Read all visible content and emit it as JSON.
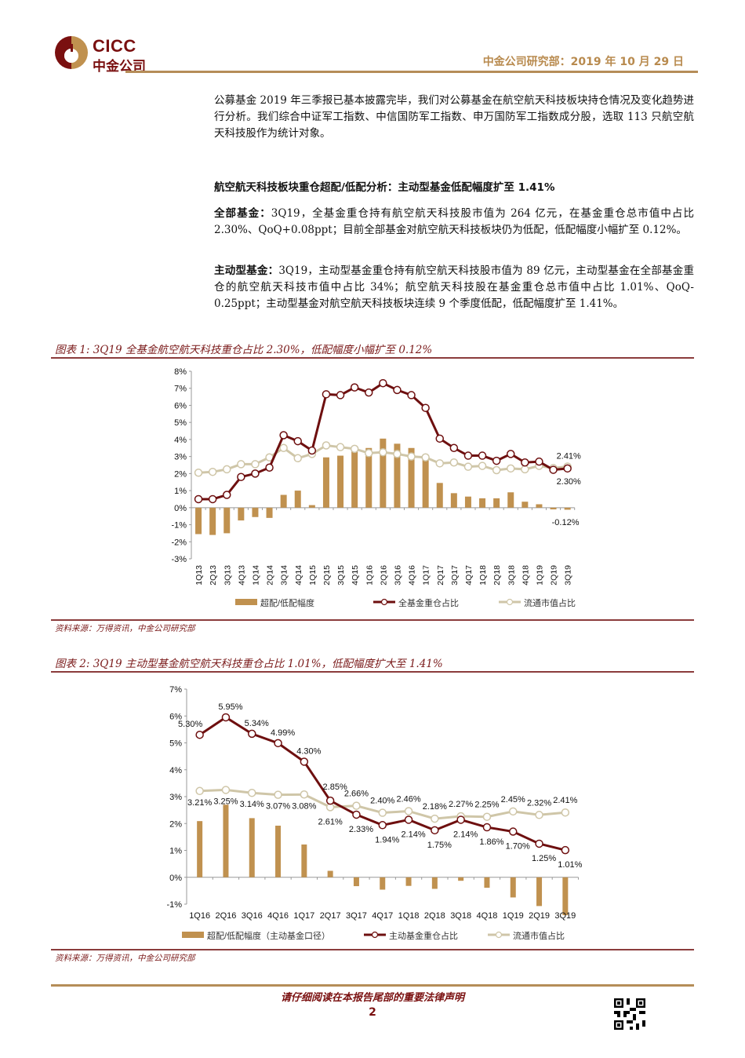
{
  "header": {
    "logo_en": "CICC",
    "logo_cn": "中金公司",
    "date_line": "中金公司研究部：2019 年 10 月 29 日"
  },
  "intro_paragraph": "公募基金 2019 年三季报已基本披露完毕，我们对公募基金在航空航天科技板块持仓情况及变化趋势进行分析。我们综合中证军工指数、中信国防军工指数、申万国防军工指数成分股，选取 113 只航空航天科技股作为统计对象。",
  "section_heading": "航空航天科技板块重仓超配/低配分析：主动型基金低配幅度扩至 1.41%",
  "all_funds": {
    "label": "全部基金：",
    "text": "3Q19，全基金重仓持有航空航天科技股市值为 264 亿元，在基金重仓总市值中占比 2.30%、QoQ+0.08ppt；目前全部基金对航空航天科技板块仍为低配，低配幅度小幅扩至 0.12%。"
  },
  "active_funds": {
    "label": "主动型基金：",
    "text": "3Q19，主动型基金重仓持有航空航天科技股市值为 89 亿元，主动型基金在全部基金重仓的航空航天科技市值中占比 34%；航空航天科技股在基金重仓总市值中占比 1.01%、QoQ-0.25ppt；主动型基金对航空航天科技板块连续 9 个季度低配，低配幅度扩至 1.41%。"
  },
  "figure1": {
    "title": "图表 1: 3Q19 全基金航空航天科技重仓占比 2.30%，低配幅度小幅扩至 0.12%",
    "source": "资料来源：万得资讯，中金公司研究部"
  },
  "figure2": {
    "title": "图表 2: 3Q19 主动型基金航空航天科技重仓占比 1.01%，低配幅度扩大至 1.41%",
    "source": "资料来源：万得资讯，中金公司研究部"
  },
  "footer": {
    "disclaimer": "请仔细阅读在本报告尾部的重要法律声明",
    "page_number": "2"
  },
  "colors": {
    "bar": "#c0914f",
    "fund_line": "#6e0f0f",
    "float_line": "#cfc6a8",
    "accent_gold": "#b58d58",
    "title_red": "#7a1a1a"
  },
  "chart_data": [
    {
      "type": "bar+line",
      "title": "3Q19 全基金航空航天科技重仓占比 2.30%，低配幅度小幅扩至 0.12%",
      "xlabel": "",
      "ylabel": "",
      "ylim": [
        -3,
        8
      ],
      "yticks": [
        "8%",
        "7%",
        "6%",
        "5%",
        "4%",
        "3%",
        "2%",
        "1%",
        "0%",
        "-1%",
        "-2%",
        "-3%"
      ],
      "grid": false,
      "legend_position": "bottom",
      "categories": [
        "1Q13",
        "2Q13",
        "3Q13",
        "4Q13",
        "1Q14",
        "2Q14",
        "3Q14",
        "4Q14",
        "1Q15",
        "2Q15",
        "3Q15",
        "4Q15",
        "1Q16",
        "2Q16",
        "3Q16",
        "4Q16",
        "1Q17",
        "2Q17",
        "3Q17",
        "4Q17",
        "1Q18",
        "2Q18",
        "3Q18",
        "4Q18",
        "1Q19",
        "2Q19",
        "3Q19"
      ],
      "series": [
        {
          "name": "超配/低配幅度",
          "kind": "bar",
          "values": [
            -1.55,
            -1.6,
            -1.5,
            -0.75,
            -0.55,
            -0.6,
            0.75,
            1.0,
            0.15,
            2.95,
            3.05,
            3.4,
            3.5,
            4.05,
            3.75,
            3.5,
            2.8,
            1.45,
            0.85,
            0.65,
            0.55,
            0.55,
            0.9,
            0.35,
            0.2,
            -0.1,
            -0.12
          ]
        },
        {
          "name": "全基金重仓占比",
          "kind": "line",
          "values": [
            0.5,
            0.5,
            0.75,
            1.8,
            2.0,
            2.35,
            4.25,
            3.9,
            3.35,
            6.65,
            6.6,
            7.05,
            6.75,
            7.3,
            6.9,
            6.6,
            5.85,
            4.05,
            3.5,
            3.05,
            3.05,
            2.75,
            3.15,
            2.65,
            2.7,
            2.22,
            2.3
          ]
        },
        {
          "name": "流通市值占比",
          "kind": "line",
          "values": [
            2.05,
            2.1,
            2.25,
            2.55,
            2.55,
            2.95,
            3.5,
            2.9,
            3.15,
            3.65,
            3.55,
            3.45,
            3.2,
            3.25,
            3.15,
            3.0,
            2.95,
            2.6,
            2.65,
            2.4,
            2.45,
            2.2,
            2.3,
            2.25,
            2.45,
            2.32,
            2.41
          ]
        }
      ],
      "annotations": [
        "2.41%",
        "2.30%",
        "-0.12%"
      ]
    },
    {
      "type": "bar+line",
      "title": "3Q19 主动型基金航空航天科技重仓占比 1.01%，低配幅度扩大至 1.41%",
      "xlabel": "",
      "ylabel": "",
      "ylim": [
        -1,
        7
      ],
      "yticks": [
        "7%",
        "6%",
        "5%",
        "4%",
        "3%",
        "2%",
        "1%",
        "0%",
        "-1%"
      ],
      "grid": false,
      "legend_position": "bottom",
      "categories": [
        "1Q16",
        "2Q16",
        "3Q16",
        "4Q16",
        "1Q17",
        "2Q17",
        "3Q17",
        "4Q17",
        "1Q18",
        "2Q18",
        "3Q18",
        "4Q18",
        "1Q19",
        "2Q19",
        "3Q19"
      ],
      "series": [
        {
          "name": "超配/低配幅度（主动基金口径）",
          "kind": "bar",
          "values": [
            2.09,
            2.7,
            2.2,
            1.92,
            1.22,
            0.24,
            -0.33,
            -0.46,
            -0.32,
            -0.43,
            -0.13,
            -0.39,
            -0.75,
            -1.07,
            -1.41
          ]
        },
        {
          "name": "主动基金重仓占比",
          "kind": "line",
          "values": [
            5.3,
            5.95,
            5.34,
            4.99,
            4.3,
            2.85,
            2.33,
            1.94,
            2.14,
            1.75,
            2.14,
            1.86,
            1.7,
            1.25,
            1.01
          ],
          "labels": [
            "5.30%",
            "5.95%",
            "5.34%",
            "4.99%",
            "4.30%",
            "2.85%",
            "2.33%",
            "1.94%",
            "2.14%",
            "1.75%",
            "2.14%",
            "1.86%",
            "1.70%",
            "1.25%",
            "1.01%"
          ]
        },
        {
          "name": "流通市值占比",
          "kind": "line",
          "values": [
            3.21,
            3.25,
            3.14,
            3.07,
            3.08,
            2.61,
            2.66,
            2.4,
            2.46,
            2.18,
            2.27,
            2.25,
            2.45,
            2.32,
            2.41
          ],
          "labels": [
            "3.21%",
            "3.25%",
            "3.14%",
            "3.07%",
            "3.08%",
            "2.61%",
            "2.66%",
            "2.40%",
            "2.46%",
            "2.18%",
            "2.27%",
            "2.25%",
            "2.45%",
            "2.32%",
            "2.41%"
          ]
        }
      ]
    }
  ]
}
